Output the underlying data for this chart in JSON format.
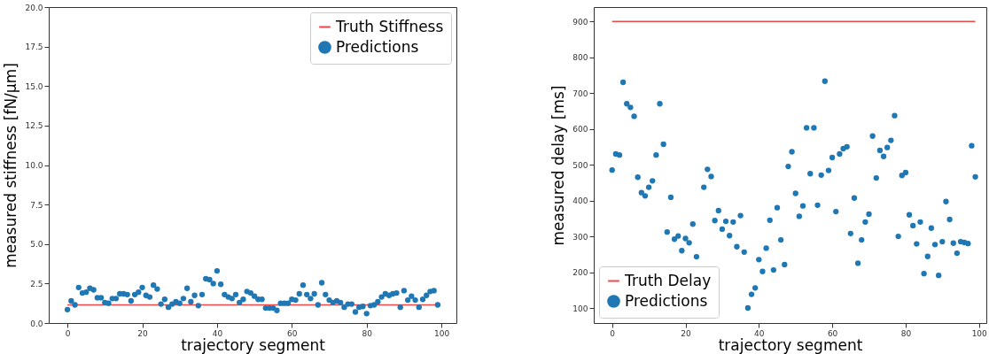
{
  "chart_data": [
    {
      "type": "scatter",
      "xlabel": "trajectory segment",
      "ylabel": "measured stiffness [fN/µm]",
      "xlim": [
        -5,
        104
      ],
      "ylim": [
        0,
        20
      ],
      "xticks": [
        0,
        20,
        40,
        60,
        80,
        100
      ],
      "yticks": [
        {
          "value": 0,
          "label": "0.0"
        },
        {
          "value": 2.5,
          "label": "2.5"
        },
        {
          "value": 5,
          "label": "5.0"
        },
        {
          "value": 7.5,
          "label": "7.5"
        },
        {
          "value": 10,
          "label": "10.0"
        },
        {
          "value": 12.5,
          "label": "12.5"
        },
        {
          "value": 15,
          "label": "15.0"
        },
        {
          "value": 17.5,
          "label": "17.5"
        },
        {
          "value": 20,
          "label": "20.0"
        }
      ],
      "grid": false,
      "legend": "top right",
      "series": [
        {
          "name": "Truth Stiffness",
          "type": "line",
          "color": "#f04848",
          "x": [
            0,
            99
          ],
          "values": [
            1.15,
            1.15
          ]
        },
        {
          "name": "Predictions",
          "type": "scatter",
          "color": "#1f77b4",
          "x": [
            0,
            1,
            2,
            3,
            4,
            5,
            6,
            7,
            8,
            9,
            10,
            11,
            12,
            13,
            14,
            15,
            16,
            17,
            18,
            19,
            20,
            21,
            22,
            23,
            24,
            25,
            26,
            27,
            28,
            29,
            30,
            31,
            32,
            33,
            34,
            35,
            36,
            37,
            38,
            39,
            40,
            41,
            42,
            43,
            44,
            45,
            46,
            47,
            48,
            49,
            50,
            51,
            52,
            53,
            54,
            55,
            56,
            57,
            58,
            59,
            60,
            61,
            62,
            63,
            64,
            65,
            66,
            67,
            68,
            69,
            70,
            71,
            72,
            73,
            74,
            75,
            76,
            77,
            78,
            79,
            80,
            81,
            82,
            83,
            84,
            85,
            86,
            87,
            88,
            89,
            90,
            91,
            92,
            93,
            94,
            95,
            96,
            97,
            98,
            99
          ],
          "values": [
            0.85,
            1.4,
            1.15,
            2.25,
            1.9,
            1.95,
            2.2,
            2.1,
            1.6,
            1.6,
            1.3,
            1.25,
            1.55,
            1.55,
            1.85,
            1.85,
            1.8,
            1.4,
            1.8,
            1.95,
            2.25,
            1.75,
            1.65,
            2.4,
            2.15,
            1.2,
            1.5,
            1.0,
            1.2,
            1.35,
            1.25,
            1.55,
            2.2,
            1.35,
            1.75,
            1.1,
            1.8,
            2.8,
            2.75,
            2.5,
            3.3,
            2.45,
            1.8,
            1.65,
            1.55,
            1.8,
            1.3,
            1.5,
            2.0,
            1.9,
            1.7,
            1.5,
            1.5,
            0.95,
            0.95,
            0.95,
            0.8,
            1.25,
            1.25,
            1.25,
            1.5,
            1.45,
            1.85,
            2.4,
            1.8,
            1.55,
            1.85,
            1.15,
            2.55,
            1.8,
            1.45,
            1.3,
            1.4,
            1.3,
            1.0,
            1.2,
            1.2,
            0.7,
            1.0,
            1.05,
            0.6,
            1.1,
            1.15,
            1.35,
            1.65,
            1.85,
            1.75,
            1.85,
            1.9,
            1.0,
            2.05,
            1.45,
            1.7,
            1.45,
            1.0,
            1.5,
            1.75,
            2.0,
            2.05,
            1.15
          ]
        }
      ]
    },
    {
      "type": "scatter",
      "xlabel": "trajectory segment",
      "ylabel": "measured delay [ms]",
      "xlim": [
        -5,
        102
      ],
      "ylim": [
        58,
        940
      ],
      "xticks": [
        0,
        20,
        40,
        60,
        80,
        100
      ],
      "yticks": [
        100,
        200,
        300,
        400,
        500,
        600,
        700,
        800,
        900
      ],
      "grid": false,
      "legend": "bottom left",
      "series": [
        {
          "name": "Truth Delay",
          "type": "line",
          "color": "#f04848",
          "x": [
            0,
            99
          ],
          "values": [
            900,
            900
          ]
        },
        {
          "name": "Predictions",
          "type": "scatter",
          "color": "#1f77b4",
          "x": [
            0,
            1,
            2,
            3,
            4,
            5,
            6,
            7,
            8,
            9,
            10,
            11,
            12,
            13,
            14,
            15,
            16,
            17,
            18,
            19,
            20,
            21,
            22,
            23,
            24,
            25,
            26,
            27,
            28,
            29,
            30,
            31,
            32,
            33,
            34,
            35,
            36,
            37,
            38,
            39,
            40,
            41,
            42,
            43,
            44,
            45,
            46,
            47,
            48,
            49,
            50,
            51,
            52,
            53,
            54,
            55,
            56,
            57,
            58,
            59,
            60,
            61,
            62,
            63,
            64,
            65,
            66,
            67,
            68,
            69,
            70,
            71,
            72,
            73,
            74,
            75,
            76,
            77,
            78,
            79,
            80,
            81,
            82,
            83,
            84,
            85,
            86,
            87,
            88,
            89,
            90,
            91,
            92,
            93,
            94,
            95,
            96,
            97,
            98,
            99
          ],
          "values": [
            485,
            530,
            527,
            730,
            670,
            660,
            635,
            465,
            422,
            413,
            437,
            455,
            527,
            670,
            557,
            312,
            409,
            292,
            301,
            260,
            294,
            282,
            334,
            243,
            null,
            437,
            487,
            467,
            344,
            372,
            320,
            342,
            302,
            340,
            271,
            358,
            256,
            100,
            138,
            156,
            235,
            202,
            267,
            345,
            206,
            380,
            290,
            221,
            495,
            536,
            420,
            356,
            385,
            603,
            475,
            603,
            387,
            471,
            733,
            484,
            520,
            369,
            530,
            545,
            550,
            308,
            407,
            225,
            290,
            340,
            362,
            580,
            463,
            540,
            523,
            548,
            568,
            637,
            300,
            470,
            478,
            360,
            330,
            279,
            340,
            196,
            244,
            323,
            277,
            191,
            285,
            397,
            347,
            281,
            253,
            285,
            283,
            280,
            553,
            466
          ]
        }
      ]
    }
  ]
}
